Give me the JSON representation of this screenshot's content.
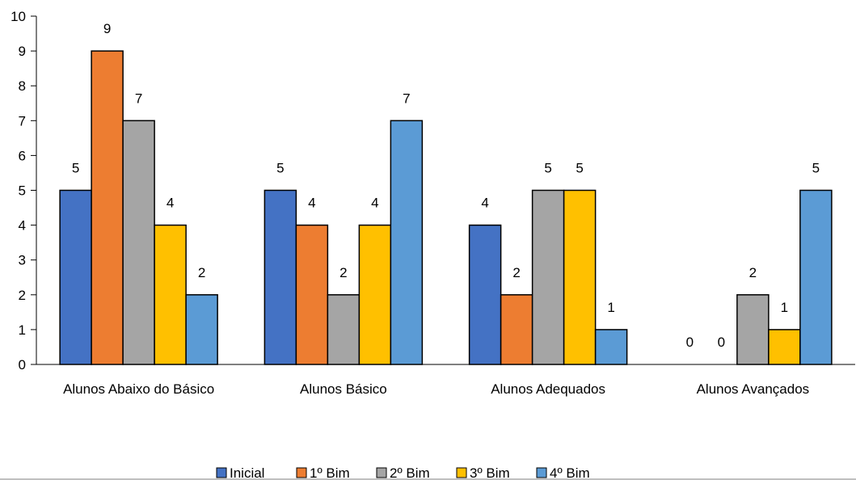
{
  "chart_data": {
    "type": "bar",
    "categories": [
      "Alunos Abaixo do Básico",
      "Alunos Básico",
      "Alunos Adequados",
      "Alunos Avançados"
    ],
    "series": [
      {
        "name": "Inicial",
        "values": [
          5,
          5,
          4,
          0
        ],
        "color": "#4472C4"
      },
      {
        "name": "1º Bim",
        "values": [
          9,
          4,
          2,
          0
        ],
        "color": "#ED7D31"
      },
      {
        "name": "2º Bim",
        "values": [
          7,
          2,
          5,
          2
        ],
        "color": "#A5A5A5"
      },
      {
        "name": "3º Bim",
        "values": [
          4,
          4,
          5,
          1
        ],
        "color": "#FFC000"
      },
      {
        "name": "4º Bim",
        "values": [
          2,
          7,
          1,
          5
        ],
        "color": "#5B9BD5"
      }
    ],
    "y_ticks": [
      "0",
      "1",
      "2",
      "3",
      "4",
      "5",
      "6",
      "7",
      "8",
      "9",
      "10"
    ],
    "ylim": [
      0,
      10
    ],
    "title": "",
    "xlabel": "",
    "ylabel": "",
    "grid": false,
    "legend_position": "bottom"
  }
}
